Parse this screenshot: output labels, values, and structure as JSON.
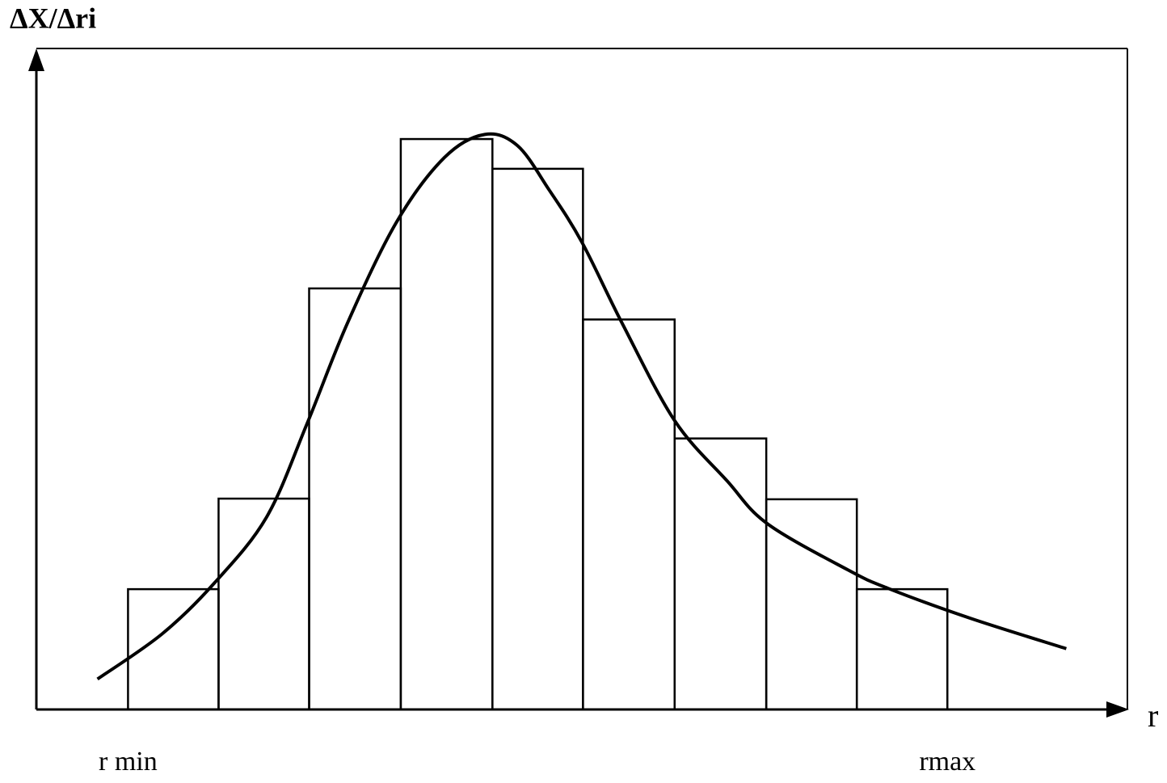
{
  "chart_data": [
    {
      "type": "histogram",
      "x_label": "r",
      "y_label": "ΔX/Δri",
      "bins": [
        8.4,
        16.7,
        25.0,
        33.4,
        41.8,
        50.1,
        58.5,
        66.9,
        75.2,
        83.5
      ],
      "values": [
        18.2,
        31.9,
        63.7,
        86.3,
        81.8,
        59.0,
        41.0,
        31.8,
        18.2
      ],
      "xlim": [
        0,
        100
      ],
      "ylim": [
        0,
        100
      ],
      "xticks": [
        {
          "value": 8.4,
          "label": "r min"
        },
        {
          "value": 83.5,
          "label": "rmax"
        }
      ],
      "color": "#000000"
    },
    {
      "type": "line",
      "x": [
        5.6,
        11.5,
        16.3,
        21.1,
        24.8,
        28.5,
        33.0,
        37.4,
        41.1,
        44.1,
        47.0,
        50.0,
        53.7,
        58.5,
        63.3,
        67.0,
        74.4,
        78.1,
        85.6,
        94.4
      ],
      "values": [
        4.6,
        11.4,
        19.1,
        29.1,
        43.2,
        58.4,
        73.7,
        83.5,
        87.0,
        85.3,
        78.6,
        70.7,
        58.4,
        43.7,
        34.6,
        28.1,
        21.1,
        18.3,
        13.8,
        9.2
      ],
      "xlim": [
        0,
        100
      ],
      "ylim": [
        0,
        100
      ],
      "color": "#000000"
    }
  ]
}
